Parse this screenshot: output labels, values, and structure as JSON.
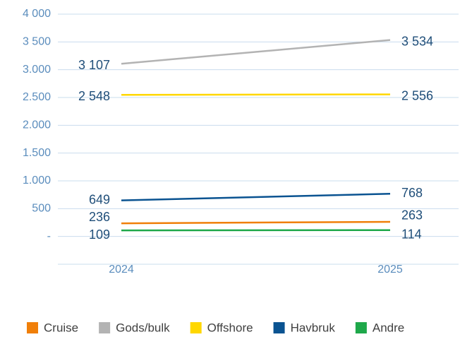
{
  "chart_data": {
    "type": "line",
    "categories": [
      "2024",
      "2025"
    ],
    "series": [
      {
        "name": "Cruise",
        "color": "#f07f09",
        "values": [
          236,
          263
        ],
        "value_labels": [
          "236",
          "263"
        ]
      },
      {
        "name": "Gods/bulk",
        "color": "#b3b3b3",
        "values": [
          3107,
          3534
        ],
        "value_labels": [
          "3 107",
          "3 534"
        ]
      },
      {
        "name": "Offshore",
        "color": "#ffd700",
        "values": [
          2548,
          2556
        ],
        "value_labels": [
          "2 548",
          "2 556"
        ]
      },
      {
        "name": "Havbruk",
        "color": "#0a5391",
        "values": [
          649,
          768
        ],
        "value_labels": [
          "649",
          "768"
        ]
      },
      {
        "name": "Andre",
        "color": "#1ea84a",
        "values": [
          109,
          114
        ],
        "value_labels": [
          "109",
          "114"
        ]
      }
    ],
    "ylim": [
      -500,
      4000
    ],
    "yticks": [
      {
        "value": 0,
        "label": "-"
      },
      500,
      {
        "value": 1000,
        "label": "1.000"
      },
      {
        "value": 1500,
        "label": "1.500"
      },
      {
        "value": 2000,
        "label": "2.000"
      },
      {
        "value": 2500,
        "label": "2.500"
      },
      {
        "value": 3000,
        "label": "3.000"
      },
      {
        "value": 3500,
        "label": "3 500"
      },
      {
        "value": 4000,
        "label": "4 000"
      }
    ],
    "grid": true,
    "legend": "bottom"
  }
}
